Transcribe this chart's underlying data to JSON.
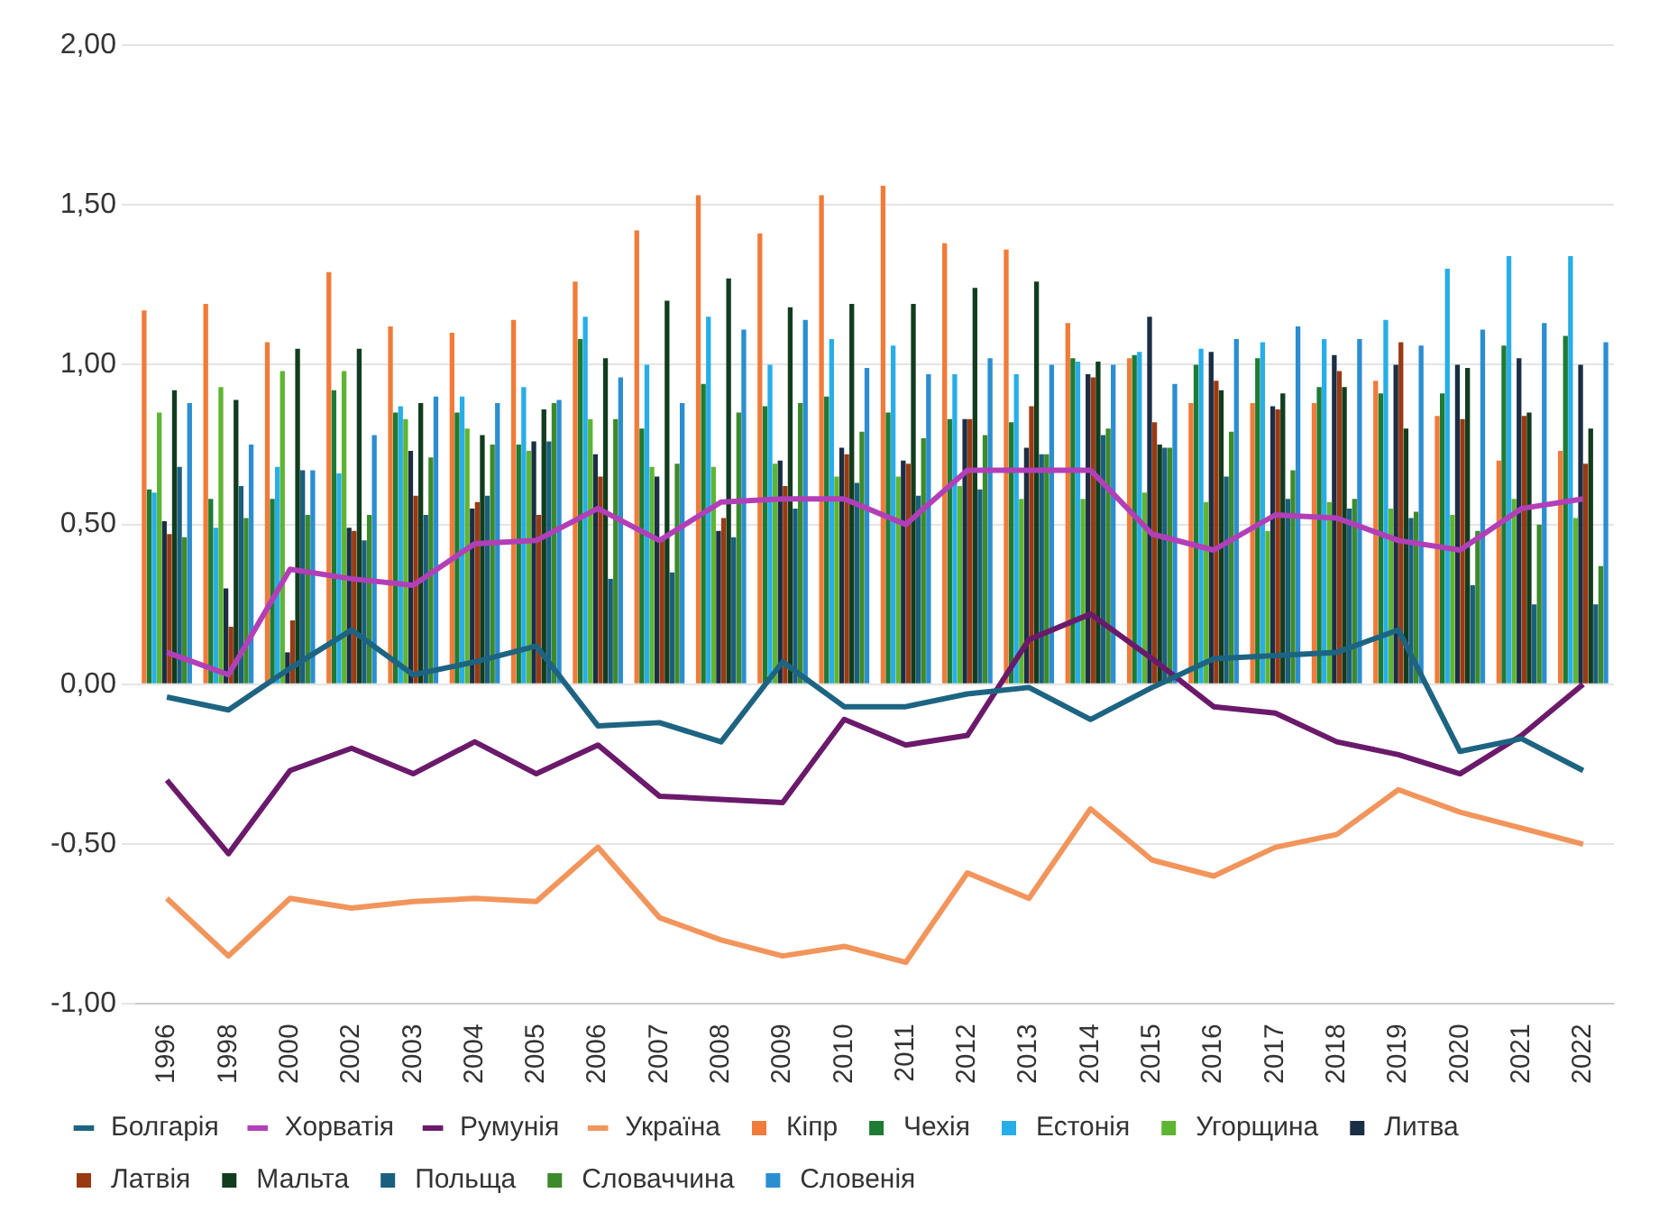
{
  "chart_data": {
    "type": "bar",
    "categories": [
      "1996",
      "1998",
      "2000",
      "2002",
      "2003",
      "2004",
      "2005",
      "2006",
      "2007",
      "2008",
      "2009",
      "2010",
      "2011",
      "2012",
      "2013",
      "2014",
      "2015",
      "2016",
      "2017",
      "2018",
      "2019",
      "2020",
      "2021",
      "2022"
    ],
    "ylim": [
      -1,
      2
    ],
    "yticks": [
      {
        "value": -1,
        "label": "-1,00"
      },
      {
        "value": -0.5,
        "label": "-0,50"
      },
      {
        "value": 0,
        "label": "0,00"
      },
      {
        "value": 0.5,
        "label": "0,50"
      },
      {
        "value": 1,
        "label": "1,00"
      },
      {
        "value": 1.5,
        "label": "1,50"
      },
      {
        "value": 2,
        "label": "2,00"
      }
    ],
    "grid": "y",
    "legend": "bottom",
    "series": [
      {
        "name": "Кіпр",
        "color": "#f07b3a",
        "values": [
          1.17,
          1.19,
          1.07,
          1.29,
          1.12,
          1.1,
          1.14,
          1.26,
          1.42,
          1.53,
          1.41,
          1.53,
          1.56,
          1.38,
          1.36,
          1.13,
          1.02,
          0.88,
          0.88,
          0.88,
          0.95,
          0.84,
          0.7,
          0.73
        ]
      },
      {
        "name": "Чехія",
        "color": "#1e7b34",
        "values": [
          0.61,
          0.58,
          0.58,
          0.92,
          0.85,
          0.85,
          0.75,
          1.08,
          0.8,
          0.94,
          0.87,
          0.9,
          0.85,
          0.83,
          0.82,
          1.02,
          1.03,
          1.0,
          1.02,
          0.93,
          0.91,
          0.91,
          1.06,
          1.09
        ]
      },
      {
        "name": "Естонія",
        "color": "#27aee8",
        "values": [
          0.6,
          0.49,
          0.68,
          0.66,
          0.87,
          0.9,
          0.93,
          1.15,
          1.0,
          1.15,
          1.0,
          1.08,
          1.06,
          0.97,
          0.97,
          1.01,
          1.04,
          1.05,
          1.07,
          1.08,
          1.14,
          1.3,
          1.34,
          1.34
        ]
      },
      {
        "name": "Угорщина",
        "color": "#5fb532",
        "values": [
          0.85,
          0.93,
          0.98,
          0.98,
          0.83,
          0.8,
          0.73,
          0.83,
          0.68,
          0.68,
          0.69,
          0.65,
          0.65,
          0.62,
          0.58,
          0.58,
          0.6,
          0.57,
          0.48,
          0.57,
          0.55,
          0.53,
          0.58,
          0.52
        ]
      },
      {
        "name": "Литва",
        "color": "#1b2e45",
        "values": [
          0.51,
          0.3,
          0.1,
          0.49,
          0.73,
          0.55,
          0.76,
          0.72,
          0.65,
          0.48,
          0.7,
          0.74,
          0.7,
          0.83,
          0.74,
          0.97,
          1.15,
          1.04,
          0.87,
          1.03,
          1.0,
          1.0,
          1.02,
          1.0
        ]
      },
      {
        "name": "Латвія",
        "color": "#9a3a12",
        "values": [
          0.47,
          0.18,
          0.2,
          0.48,
          0.59,
          0.57,
          0.53,
          0.65,
          0.45,
          0.52,
          0.62,
          0.72,
          0.69,
          0.83,
          0.87,
          0.96,
          0.82,
          0.95,
          0.86,
          0.98,
          1.07,
          0.83,
          0.84,
          0.69
        ]
      },
      {
        "name": "Мальта",
        "color": "#113d1e",
        "values": [
          0.92,
          0.89,
          1.05,
          1.05,
          0.88,
          0.78,
          0.86,
          1.02,
          1.2,
          1.27,
          1.18,
          1.19,
          1.19,
          1.24,
          1.26,
          1.01,
          0.75,
          0.92,
          0.91,
          0.93,
          0.8,
          0.99,
          0.85,
          0.8
        ]
      },
      {
        "name": "Польща",
        "color": "#1b5f7e",
        "values": [
          0.68,
          0.62,
          0.67,
          0.45,
          0.53,
          0.59,
          0.76,
          0.33,
          0.35,
          0.46,
          0.55,
          0.63,
          0.59,
          0.61,
          0.72,
          0.78,
          0.74,
          0.65,
          0.58,
          0.55,
          0.52,
          0.31,
          0.25,
          0.25
        ]
      },
      {
        "name": "Словаччина",
        "color": "#3d8a2a",
        "values": [
          0.46,
          0.52,
          0.53,
          0.53,
          0.71,
          0.75,
          0.88,
          0.83,
          0.69,
          0.85,
          0.88,
          0.79,
          0.77,
          0.78,
          0.72,
          0.8,
          0.74,
          0.79,
          0.67,
          0.58,
          0.54,
          0.48,
          0.5,
          0.37
        ]
      },
      {
        "name": "Словенія",
        "color": "#2b8ed1",
        "values": [
          0.88,
          0.75,
          0.67,
          0.78,
          0.9,
          0.88,
          0.89,
          0.96,
          0.88,
          1.11,
          1.14,
          0.99,
          0.97,
          1.02,
          1.0,
          1.0,
          0.94,
          1.08,
          1.12,
          1.08,
          1.06,
          1.11,
          1.13,
          1.07
        ]
      },
      {
        "name": "Болгарія",
        "type": "line",
        "color": "#1d6482",
        "values": [
          -0.04,
          -0.08,
          0.05,
          0.17,
          0.03,
          0.07,
          0.12,
          -0.13,
          -0.12,
          -0.18,
          0.07,
          -0.07,
          -0.07,
          -0.03,
          -0.01,
          -0.11,
          -0.01,
          0.08,
          0.09,
          0.1,
          0.17,
          -0.21,
          -0.17,
          -0.27
        ]
      },
      {
        "name": "Хорватія",
        "type": "line",
        "color": "#b23fb8",
        "values": [
          0.1,
          0.03,
          0.36,
          0.33,
          0.31,
          0.44,
          0.45,
          0.55,
          0.45,
          0.57,
          0.58,
          0.58,
          0.5,
          0.67,
          0.67,
          0.67,
          0.47,
          0.42,
          0.53,
          0.52,
          0.45,
          0.42,
          0.55,
          0.58
        ]
      },
      {
        "name": "Румунія",
        "type": "line",
        "color": "#6b1a6b",
        "values": [
          -0.3,
          -0.53,
          -0.27,
          -0.2,
          -0.28,
          -0.18,
          -0.28,
          -0.19,
          -0.35,
          -0.36,
          -0.37,
          -0.11,
          -0.19,
          -0.16,
          0.14,
          0.22,
          0.08,
          -0.07,
          -0.09,
          -0.18,
          -0.22,
          -0.28,
          -0.16,
          0.0
        ]
      },
      {
        "name": "Україна",
        "type": "line",
        "color": "#f2955c",
        "values": [
          -0.67,
          -0.85,
          -0.67,
          -0.7,
          -0.68,
          -0.67,
          -0.68,
          -0.51,
          -0.73,
          -0.8,
          -0.85,
          -0.82,
          -0.87,
          -0.59,
          -0.67,
          -0.39,
          -0.55,
          -0.6,
          -0.51,
          -0.47,
          -0.33,
          -0.4,
          -0.45,
          -0.5
        ]
      }
    ]
  }
}
